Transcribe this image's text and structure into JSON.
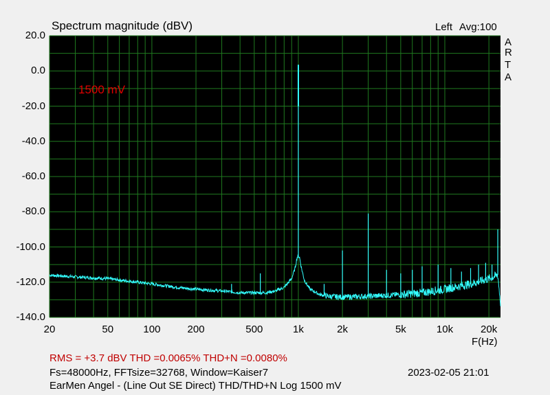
{
  "header": {
    "title": "Spectrum magnitude (dBV)",
    "channel": "Left",
    "avg": "Avg:100",
    "brand_letters": [
      "A",
      "R",
      "T",
      "A"
    ]
  },
  "annotation": {
    "label": "1500 mV",
    "color": "#e00000"
  },
  "footer": {
    "stats": "RMS =    +3.7 dBV   THD =0.0065%   THD+N =0.0080%",
    "fft": "Fs=48000Hz, FFTsize=32768, Window=Kaiser7",
    "datetime": "2023-02-05  21:01",
    "description": "EarMen Angel - (Line Out SE Direct) THD/THD+N Log 1500 mV"
  },
  "colors": {
    "background": "#000000",
    "grid": "#1f7a1f",
    "trace": "#33ffff",
    "stats_text": "#c00000"
  },
  "chart_data": {
    "type": "line",
    "title": "Spectrum magnitude (dBV)",
    "xlabel": "F(Hz)",
    "ylabel": "",
    "x_scale": "log",
    "xlim": [
      20,
      24000
    ],
    "ylim": [
      -140,
      20
    ],
    "grid": true,
    "y_ticks": [
      "20.0",
      "0.0",
      "-20.0",
      "-40.0",
      "-60.0",
      "-80.0",
      "-100.0",
      "-120.0",
      "-140.0"
    ],
    "x_ticks": [
      {
        "value": 20,
        "label": "20"
      },
      {
        "value": 50,
        "label": "50"
      },
      {
        "value": 100,
        "label": "100"
      },
      {
        "value": 200,
        "label": "200"
      },
      {
        "value": 500,
        "label": "500"
      },
      {
        "value": 1000,
        "label": "1k"
      },
      {
        "value": 2000,
        "label": "2k"
      },
      {
        "value": 5000,
        "label": "5k"
      },
      {
        "value": 10000,
        "label": "10k"
      },
      {
        "value": 20000,
        "label": "20k"
      }
    ],
    "noise_floor": {
      "x": [
        20,
        30,
        50,
        80,
        100,
        150,
        200,
        300,
        400,
        500,
        600,
        700,
        800,
        900,
        950,
        980,
        1000,
        1020,
        1050,
        1100,
        1200,
        1400,
        1600,
        2000,
        3000,
        4000,
        5000,
        7000,
        10000,
        15000,
        20000,
        23000,
        24000
      ],
      "y": [
        -116,
        -117,
        -118,
        -120,
        -121,
        -123,
        -124,
        -125,
        -126,
        -126,
        -126,
        -125,
        -123,
        -118,
        -112,
        -106,
        -105,
        -106,
        -112,
        -119,
        -124,
        -127,
        -128,
        -128.5,
        -128,
        -127.5,
        -127,
        -126,
        -124,
        -121,
        -118,
        -116,
        -132
      ]
    },
    "peaks": [
      {
        "x": 1000,
        "y": 3.5
      },
      {
        "x": 2000,
        "y": -102
      },
      {
        "x": 3000,
        "y": -81
      },
      {
        "x": 4000,
        "y": -113
      },
      {
        "x": 5000,
        "y": -115
      },
      {
        "x": 6000,
        "y": -113
      },
      {
        "x": 7000,
        "y": -111
      },
      {
        "x": 9000,
        "y": -110
      },
      {
        "x": 11000,
        "y": -112
      },
      {
        "x": 13000,
        "y": -114
      },
      {
        "x": 15000,
        "y": -112
      },
      {
        "x": 17000,
        "y": -110
      },
      {
        "x": 19000,
        "y": -109
      },
      {
        "x": 21000,
        "y": -110
      },
      {
        "x": 23000,
        "y": -90
      },
      {
        "x": 550,
        "y": -115
      },
      {
        "x": 350,
        "y": -121
      },
      {
        "x": 150,
        "y": -123
      },
      {
        "x": 1500,
        "y": -121
      }
    ]
  }
}
